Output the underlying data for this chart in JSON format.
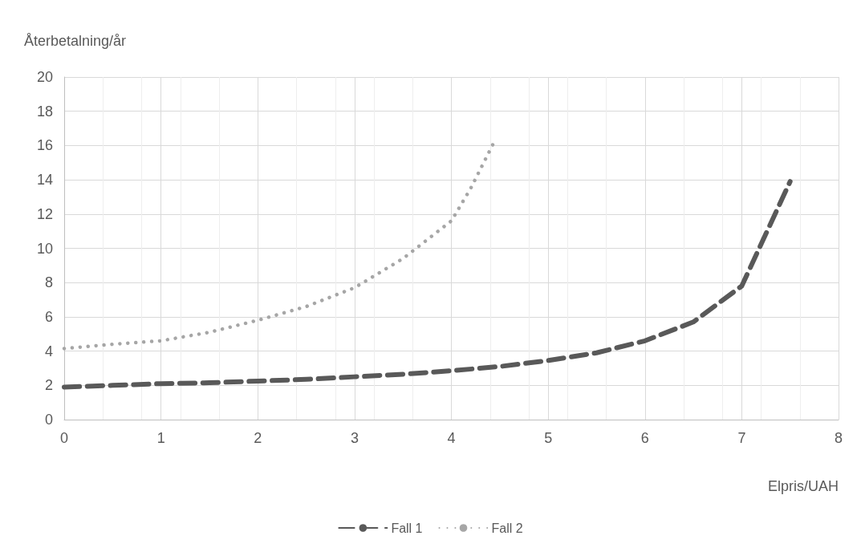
{
  "chart_data": {
    "type": "line",
    "xlabel": "Elpris/UAH",
    "ylabel": "Återbetalning/år",
    "xlim": [
      0,
      8
    ],
    "xticks": [
      0,
      1,
      2,
      3,
      4,
      5,
      6,
      7,
      8
    ],
    "ylim": [
      0,
      20
    ],
    "yticks": [
      0,
      2,
      4,
      6,
      8,
      10,
      12,
      14,
      16,
      18,
      20
    ],
    "grid": true,
    "legend": "bottom",
    "marker": "none",
    "series": [
      {
        "name": "Fall 1",
        "color": "#595959",
        "line_style": "dashed",
        "x": [
          0,
          0.5,
          1,
          1.5,
          2,
          2.5,
          3,
          3.5,
          4,
          4.5,
          5,
          5.5,
          6,
          6.5,
          7,
          7.5
        ],
        "values": [
          1.9,
          2.0,
          2.1,
          2.15,
          2.25,
          2.35,
          2.5,
          2.65,
          2.85,
          3.1,
          3.45,
          3.9,
          4.6,
          5.7,
          7.8,
          13.9
        ]
      },
      {
        "name": "Fall 2",
        "color": "#a6a6a6",
        "line_style": "dotted",
        "x": [
          0,
          0.5,
          1,
          1.5,
          2,
          2.5,
          3,
          3.5,
          4,
          4.2,
          4.45
        ],
        "values": [
          4.15,
          4.4,
          4.6,
          5.1,
          5.8,
          6.6,
          7.7,
          9.4,
          11.6,
          13.5,
          16.3
        ]
      }
    ]
  }
}
